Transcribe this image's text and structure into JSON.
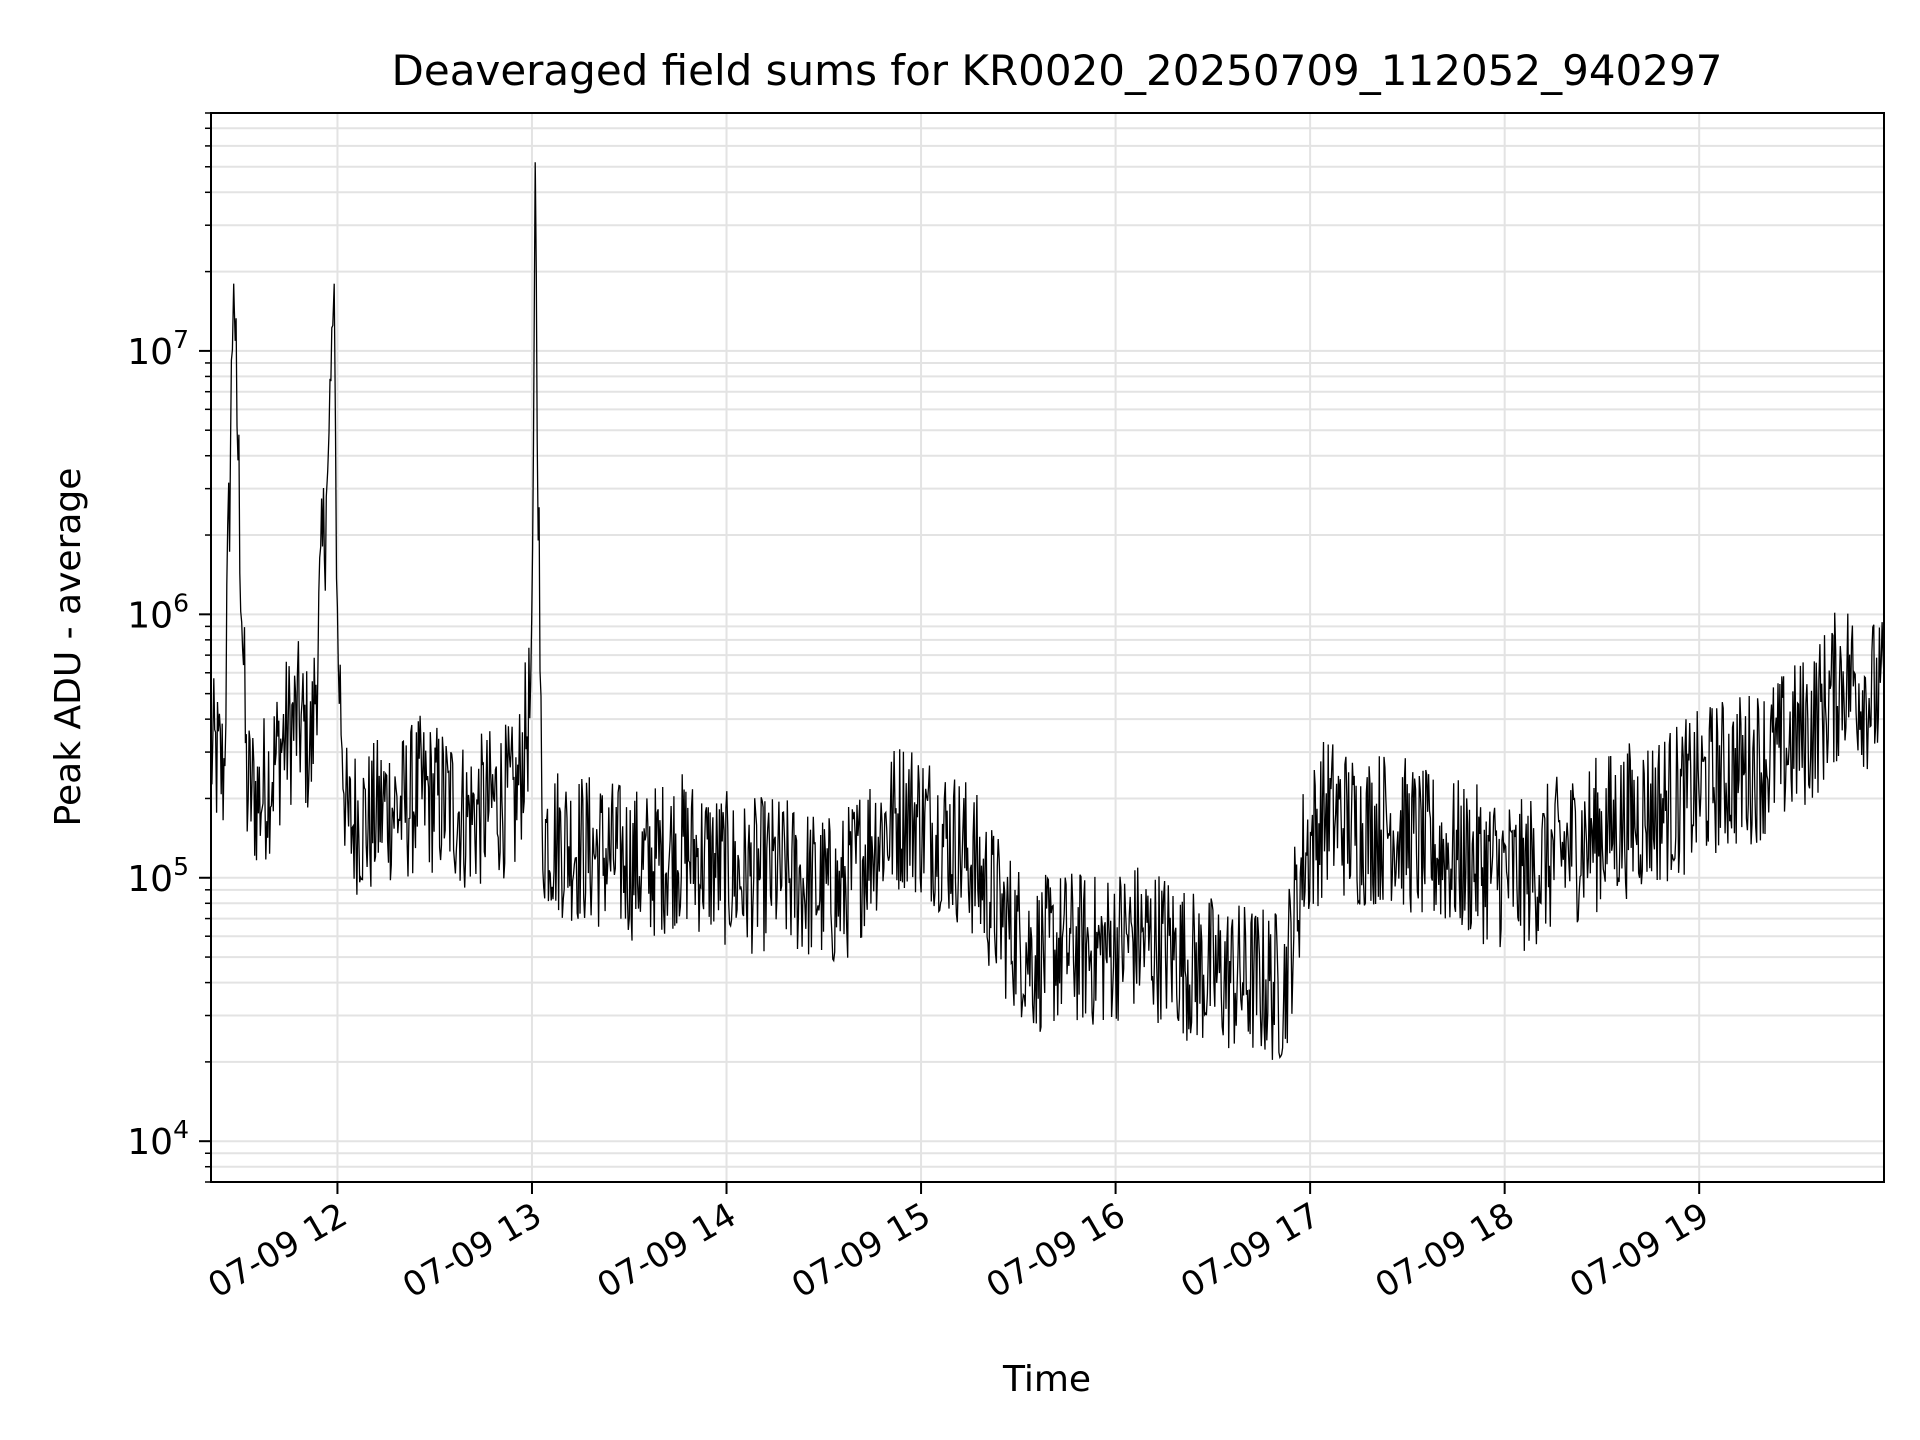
{
  "chart_data": {
    "type": "line",
    "title": "Deaveraged field sums for KR0020_20250709_112052_940297",
    "xlabel": "Time",
    "ylabel": "Peak ADU - average",
    "x_scale": "time",
    "y_scale": "log",
    "xlim": [
      "07-09 11:21",
      "07-09 19:57"
    ],
    "ylim": [
      7000,
      80000000
    ],
    "grid": true,
    "line_color": "#000000",
    "x_ticks": [
      {
        "value": "07-09 12:00",
        "label": "07-09 12"
      },
      {
        "value": "07-09 13:00",
        "label": "07-09 13"
      },
      {
        "value": "07-09 14:00",
        "label": "07-09 14"
      },
      {
        "value": "07-09 15:00",
        "label": "07-09 15"
      },
      {
        "value": "07-09 16:00",
        "label": "07-09 16"
      },
      {
        "value": "07-09 17:00",
        "label": "07-09 17"
      },
      {
        "value": "07-09 18:00",
        "label": "07-09 18"
      },
      {
        "value": "07-09 19:00",
        "label": "07-09 19"
      }
    ],
    "y_ticks": [
      {
        "value": 10000,
        "base": "10",
        "exp": "4"
      },
      {
        "value": 100000,
        "base": "10",
        "exp": "5"
      },
      {
        "value": 1000000,
        "base": "10",
        "exp": "6"
      },
      {
        "value": 10000000,
        "base": "10",
        "exp": "7"
      }
    ],
    "series": [
      {
        "x": [
          "07-09 11:21",
          "07-09 11:25",
          "07-09 11:28",
          "07-09 11:32",
          "07-09 11:36",
          "07-09 11:40",
          "07-09 11:44",
          "07-09 11:48",
          "07-09 11:52",
          "07-09 11:57",
          "07-09 11:59",
          "07-09 12:00",
          "07-09 12:03",
          "07-09 12:06",
          "07-09 12:10",
          "07-09 12:15",
          "07-09 12:20",
          "07-09 12:25",
          "07-09 12:30",
          "07-09 12:35",
          "07-09 12:40",
          "07-09 12:45",
          "07-09 12:50",
          "07-09 12:55",
          "07-09 13:00",
          "07-09 13:01",
          "07-09 13:03",
          "07-09 13:08",
          "07-09 13:15",
          "07-09 13:25",
          "07-09 13:35",
          "07-09 13:45",
          "07-09 13:55",
          "07-09 14:05",
          "07-09 14:15",
          "07-09 14:25",
          "07-09 14:35",
          "07-09 14:45",
          "07-09 14:55",
          "07-09 15:05",
          "07-09 15:15",
          "07-09 15:25",
          "07-09 15:35",
          "07-09 15:45",
          "07-09 15:55",
          "07-09 16:05",
          "07-09 16:15",
          "07-09 16:25",
          "07-09 16:35",
          "07-09 16:45",
          "07-09 16:52",
          "07-09 16:58",
          "07-09 17:05",
          "07-09 17:15",
          "07-09 17:25",
          "07-09 17:35",
          "07-09 17:45",
          "07-09 17:55",
          "07-09 18:05",
          "07-09 18:15",
          "07-09 18:25",
          "07-09 18:35",
          "07-09 18:45",
          "07-09 18:55",
          "07-09 19:05",
          "07-09 19:15",
          "07-09 19:25",
          "07-09 19:35",
          "07-09 19:45",
          "07-09 19:52",
          "07-09 19:57"
        ],
        "values": [
          300000,
          250000,
          18000000,
          220000,
          200000,
          260000,
          350000,
          400000,
          300000,
          3500000,
          18000000,
          800000,
          150000,
          170000,
          160000,
          190000,
          180000,
          210000,
          200000,
          190000,
          170000,
          180000,
          200000,
          190000,
          500000,
          52000000,
          150000,
          140000,
          130000,
          120000,
          110000,
          130000,
          115000,
          100000,
          105000,
          95000,
          85000,
          140000,
          180000,
          150000,
          120000,
          70000,
          50000,
          55000,
          52000,
          60000,
          55000,
          45000,
          42000,
          40000,
          38000,
          120000,
          180000,
          150000,
          160000,
          130000,
          120000,
          110000,
          100000,
          120000,
          140000,
          160000,
          180000,
          200000,
          240000,
          260000,
          300000,
          380000,
          600000,
          500000,
          480000
        ],
        "noise_log10": 0.3
      }
    ]
  }
}
